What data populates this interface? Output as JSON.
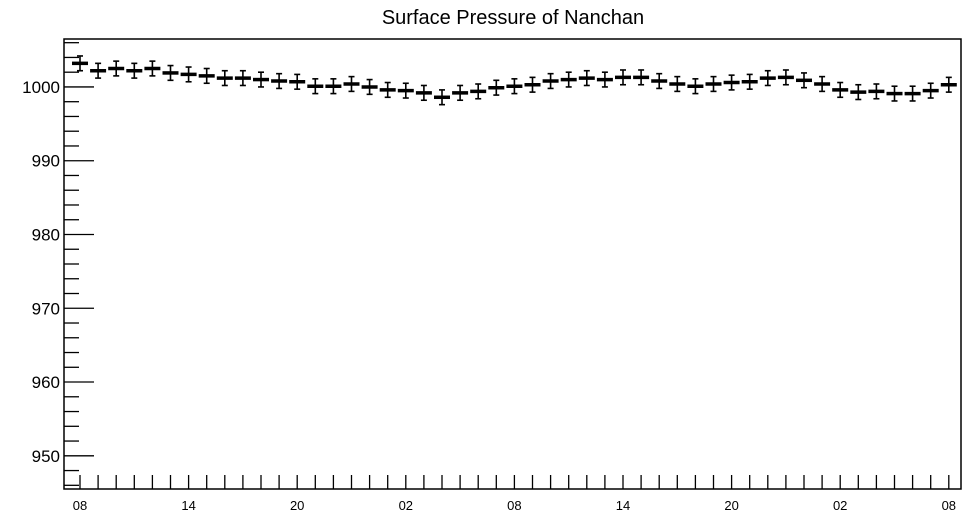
{
  "chart_data": {
    "type": "scatter",
    "title": "Surface Pressure of Nanchan",
    "xlabel": "",
    "ylabel": "",
    "ylim": [
      945.5,
      1006.5
    ],
    "y_ticks": [
      950,
      960,
      970,
      980,
      990,
      1000
    ],
    "y_tick_labels": [
      "950",
      "960",
      "970",
      "980",
      "990",
      "1000"
    ],
    "x_tick_labels": [
      "08",
      "14",
      "20",
      "02",
      "08",
      "14",
      "20",
      "02",
      "08"
    ],
    "grid": false,
    "legend": "none",
    "marker": "point with vertical error bar",
    "values": [
      1003.2,
      1002.2,
      1002.5,
      1002.2,
      1002.5,
      1001.9,
      1001.7,
      1001.5,
      1001.2,
      1001.2,
      1001.0,
      1000.8,
      1000.7,
      1000.1,
      1000.1,
      1000.4,
      1000.0,
      999.6,
      999.5,
      999.2,
      998.6,
      999.2,
      999.4,
      999.9,
      1000.1,
      1000.3,
      1000.8,
      1001.0,
      1001.2,
      1001.0,
      1001.3,
      1001.3,
      1000.8,
      1000.4,
      1000.1,
      1000.4,
      1000.6,
      1000.7,
      1001.2,
      1001.3,
      1000.9,
      1000.4,
      999.6,
      999.3,
      999.4,
      999.1,
      999.1,
      999.5,
      1000.3
    ],
    "error": 1.0
  }
}
